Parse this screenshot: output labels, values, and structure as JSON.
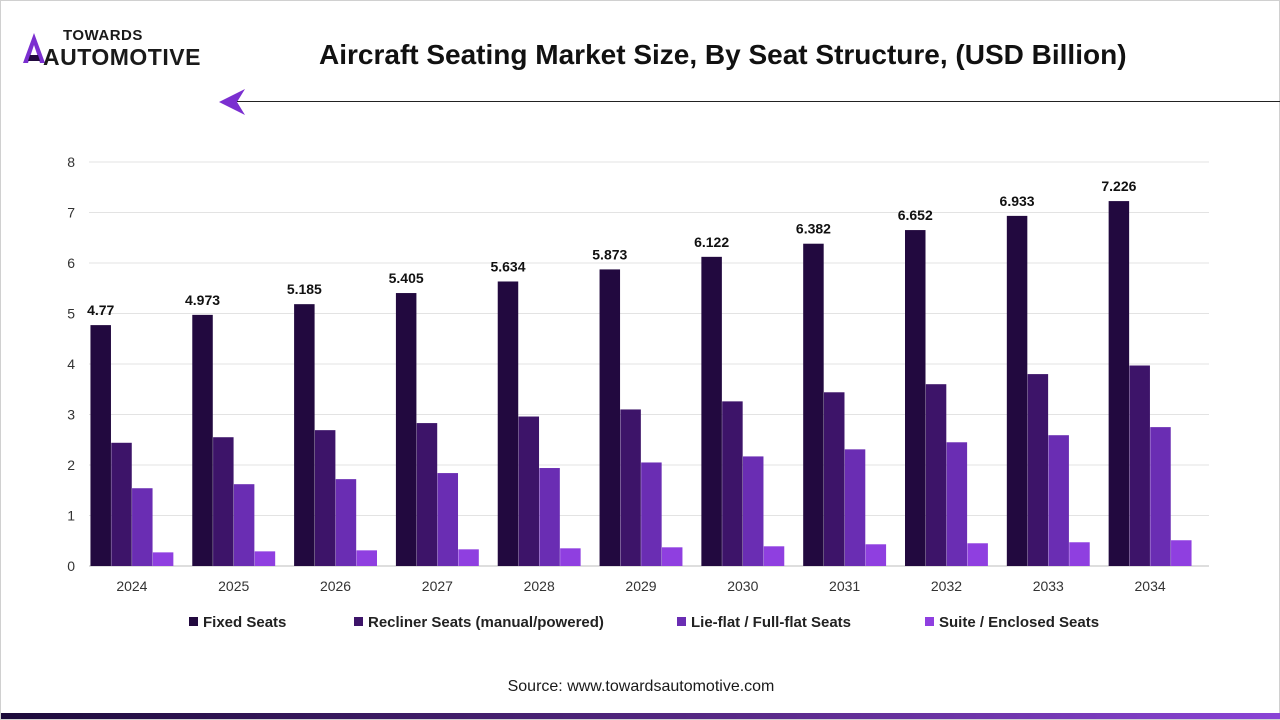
{
  "brand": {
    "name_top": "TOWARDS",
    "name_bottom": "AUTOMOTIVE",
    "accent_color": "#7b2fd0"
  },
  "source_text": "Source: www.towardsautomotive.com",
  "chart_data": {
    "type": "bar",
    "title": "Aircraft Seating Market Size, By Seat Structure, (USD Billion)",
    "xlabel": "",
    "ylabel": "",
    "ylim": [
      0,
      8
    ],
    "yticks": [
      0,
      1,
      2,
      3,
      4,
      5,
      6,
      7,
      8
    ],
    "grid": true,
    "legend_position": "bottom",
    "categories": [
      "2024",
      "2025",
      "2026",
      "2027",
      "2028",
      "2029",
      "2030",
      "2031",
      "2032",
      "2033",
      "2034"
    ],
    "series": [
      {
        "name": "Fixed Seats",
        "color": "#22093f",
        "values": [
          4.77,
          4.973,
          5.185,
          5.405,
          5.634,
          5.873,
          6.122,
          6.382,
          6.652,
          6.933,
          7.226
        ],
        "labels": [
          "4.77",
          "4.973",
          "5.185",
          "5.405",
          "5.634",
          "5.873",
          "6.122",
          "6.382",
          "6.652",
          "6.933",
          "7.226"
        ]
      },
      {
        "name": "Recliner Seats (manual/powered)",
        "color": "#3d1469",
        "values": [
          2.44,
          2.55,
          2.69,
          2.83,
          2.96,
          3.1,
          3.26,
          3.44,
          3.6,
          3.8,
          3.97
        ]
      },
      {
        "name": "Lie-flat / Full-flat Seats",
        "color": "#6a2db3",
        "values": [
          1.54,
          1.62,
          1.72,
          1.84,
          1.94,
          2.05,
          2.17,
          2.31,
          2.45,
          2.59,
          2.75
        ]
      },
      {
        "name": "Suite / Enclosed Seats",
        "color": "#8f3fe0",
        "values": [
          0.27,
          0.29,
          0.31,
          0.33,
          0.35,
          0.37,
          0.39,
          0.43,
          0.45,
          0.47,
          0.51
        ]
      }
    ]
  }
}
